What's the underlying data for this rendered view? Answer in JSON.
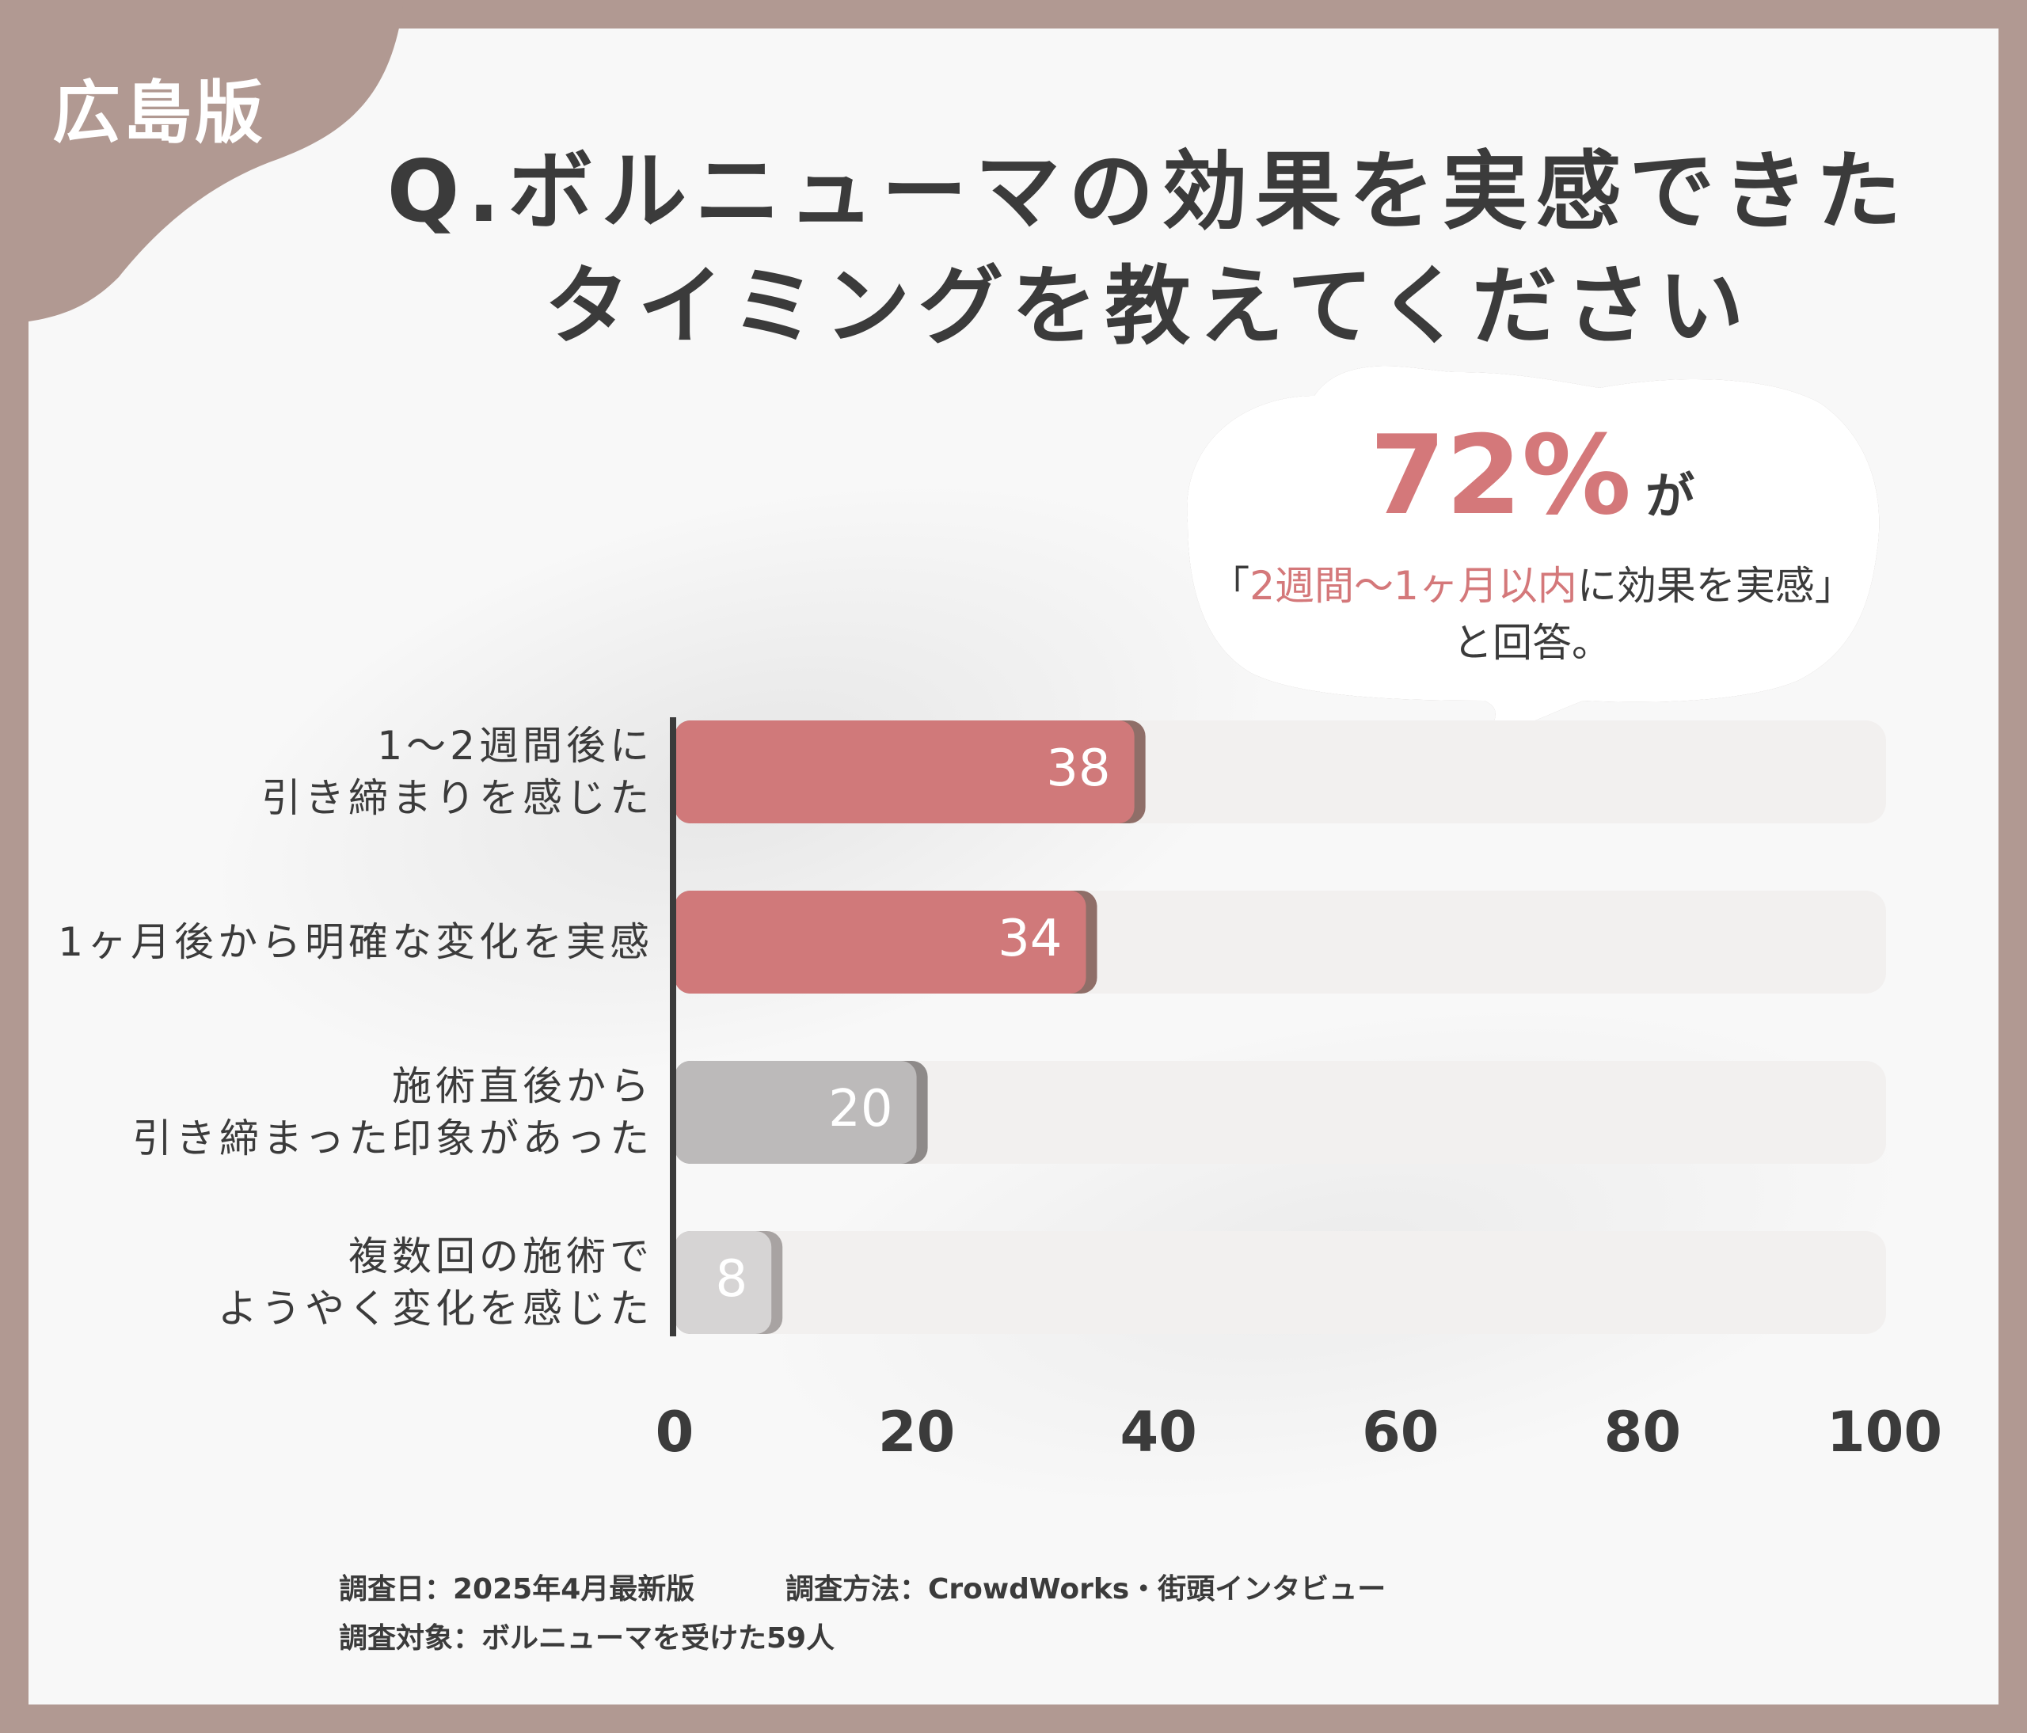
{
  "badge": {
    "label": "広島版"
  },
  "title": {
    "line1": "Q.ボルニューマの効果を実感できた",
    "line2": "タイミングを教えてください"
  },
  "callout": {
    "percent": "72%",
    "suffix": "が",
    "line2_open": "「",
    "line2_highlight": "2週間〜1ヶ月以内",
    "line2_rest": "に効果を実感」",
    "line3": "と回答。"
  },
  "colors": {
    "highlight_bar": "#d0797a",
    "gray_bar_1": "#bcbaba",
    "gray_bar_2": "#d6d4d4",
    "track": "#f2f0ef",
    "frame": "#b19992",
    "accent_text": "#d4787a"
  },
  "chart_data": {
    "type": "bar",
    "orientation": "horizontal",
    "categories": [
      [
        "1〜2週間後に",
        "引き締まりを感じた"
      ],
      [
        "1ヶ月後から明確な変化を実感"
      ],
      [
        "施術直後から",
        "引き締まった印象があった"
      ],
      [
        "複数回の施術で",
        "ようやく変化を感じた"
      ]
    ],
    "values": [
      38,
      34,
      20,
      8
    ],
    "value_labels": [
      "38",
      "34",
      "20",
      "8"
    ],
    "bar_styles": [
      "highlight",
      "highlight",
      "gray",
      "light-gray"
    ],
    "xlim": [
      0,
      100
    ],
    "xticks": [
      "0",
      "20",
      "40",
      "60",
      "80",
      "100"
    ],
    "grid": false,
    "legend": "none"
  },
  "footer": {
    "date": "調査日：2025年4月最新版",
    "method": "調査方法：CrowdWorks・街頭インタビュー",
    "subject": "調査対象：ボルニューマを受けた59人"
  }
}
